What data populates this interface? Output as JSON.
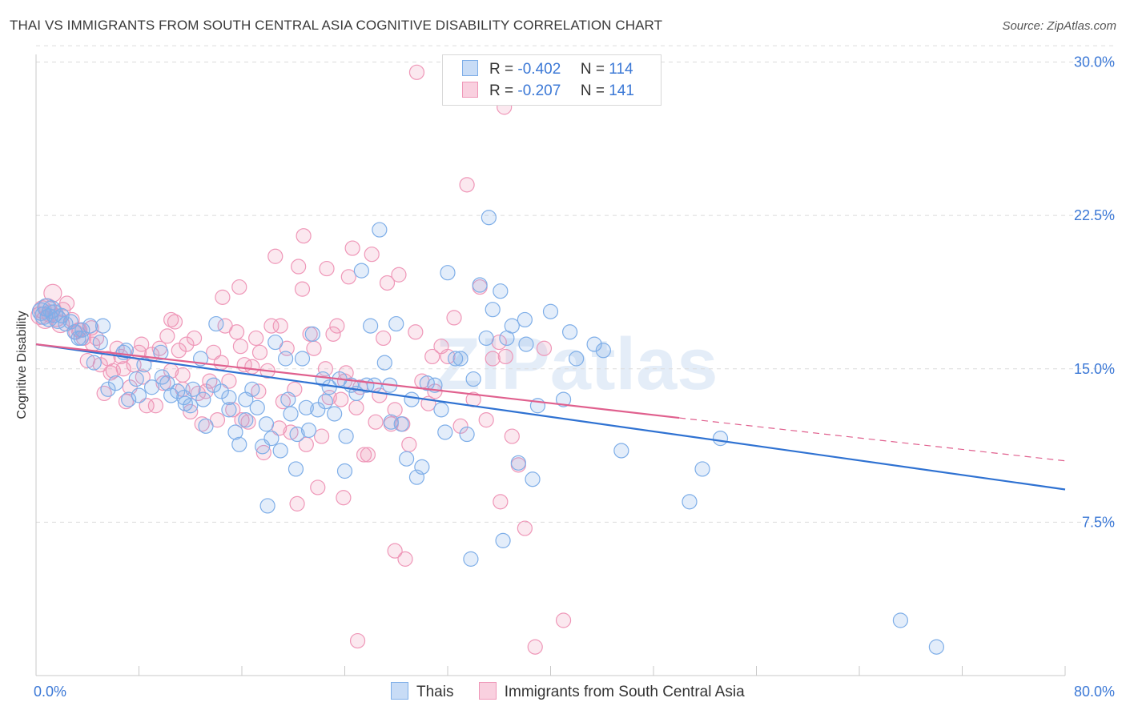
{
  "title": "THAI VS IMMIGRANTS FROM SOUTH CENTRAL ASIA COGNITIVE DISABILITY CORRELATION CHART",
  "source": "Source: ZipAtlas.com",
  "watermark": "ZIPatlas",
  "colors": {
    "blue": "#7eaee8",
    "blue_line": "#2f72d2",
    "pink": "#ef97b8",
    "pink_line": "#e0608e",
    "axis_text": "#3b78d6",
    "grid": "#dcdcdc"
  },
  "legend": {
    "rows": [
      {
        "r_label": "R =",
        "r_value": "-0.402",
        "n_label": "N =",
        "n_value": "114"
      },
      {
        "r_label": "R =",
        "r_value": "-0.207",
        "n_label": "N =",
        "n_value": "141"
      }
    ]
  },
  "bottom_legend": {
    "thais": "Thais",
    "immigrants": "Immigrants from South Central Asia"
  },
  "chart_data": {
    "type": "scatter",
    "title": "THAI VS IMMIGRANTS FROM SOUTH CENTRAL ASIA COGNITIVE DISABILITY CORRELATION CHART",
    "xlabel": "",
    "ylabel": "Cognitive Disability",
    "xlim": [
      0,
      80
    ],
    "ylim": [
      0,
      31
    ],
    "x_tick_labels": [
      "0.0%",
      "80.0%"
    ],
    "y_ticks": [
      7.5,
      15.0,
      22.5,
      30.0
    ],
    "y_tick_labels": [
      "7.5%",
      "15.0%",
      "22.5%",
      "30.0%"
    ],
    "grid": true,
    "series": [
      {
        "name": "Thais",
        "r": -0.402,
        "n": 114,
        "trend": {
          "x": [
            0,
            80
          ],
          "y": [
            16.2,
            9.1
          ]
        },
        "points": [
          [
            0.4,
            17.8
          ],
          [
            0.6,
            17.6
          ],
          [
            0.8,
            18.0
          ],
          [
            1.0,
            17.5
          ],
          [
            1.2,
            17.9
          ],
          [
            1.4,
            17.7
          ],
          [
            1.7,
            17.4
          ],
          [
            2.0,
            17.6
          ],
          [
            2.3,
            17.2
          ],
          [
            2.7,
            17.3
          ],
          [
            3.0,
            16.8
          ],
          [
            3.3,
            16.5
          ],
          [
            3.6,
            16.9
          ],
          [
            4.2,
            17.1
          ],
          [
            4.5,
            15.3
          ],
          [
            5.0,
            16.3
          ],
          [
            5.6,
            14.0
          ],
          [
            6.2,
            14.3
          ],
          [
            6.8,
            15.8
          ],
          [
            7.2,
            13.5
          ],
          [
            7.8,
            14.5
          ],
          [
            8.4,
            15.2
          ],
          [
            9.0,
            14.1
          ],
          [
            9.8,
            14.6
          ],
          [
            10.5,
            13.7
          ],
          [
            11.0,
            13.9
          ],
          [
            11.6,
            13.3
          ],
          [
            12.2,
            14.0
          ],
          [
            12.8,
            15.5
          ],
          [
            13.2,
            12.2
          ],
          [
            13.8,
            14.2
          ],
          [
            14.4,
            13.9
          ],
          [
            15.0,
            13.6
          ],
          [
            15.5,
            11.9
          ],
          [
            15.8,
            11.3
          ],
          [
            16.3,
            12.5
          ],
          [
            16.8,
            14.0
          ],
          [
            17.2,
            13.1
          ],
          [
            17.6,
            11.2
          ],
          [
            17.9,
            12.3
          ],
          [
            18.3,
            11.6
          ],
          [
            18.6,
            16.3
          ],
          [
            19.0,
            11.0
          ],
          [
            19.4,
            15.5
          ],
          [
            19.8,
            12.8
          ],
          [
            20.3,
            11.8
          ],
          [
            20.7,
            15.5
          ],
          [
            21.2,
            12.0
          ],
          [
            21.5,
            16.7
          ],
          [
            21.9,
            13.0
          ],
          [
            22.3,
            14.5
          ],
          [
            22.8,
            14.1
          ],
          [
            23.2,
            12.8
          ],
          [
            23.6,
            14.5
          ],
          [
            24.1,
            11.7
          ],
          [
            24.5,
            14.2
          ],
          [
            24.9,
            13.8
          ],
          [
            25.3,
            19.8
          ],
          [
            25.7,
            14.2
          ],
          [
            26.3,
            14.2
          ],
          [
            26.7,
            21.8
          ],
          [
            27.1,
            15.3
          ],
          [
            27.5,
            14.2
          ],
          [
            28.0,
            17.2
          ],
          [
            28.4,
            12.3
          ],
          [
            28.8,
            10.6
          ],
          [
            29.2,
            13.5
          ],
          [
            29.6,
            9.7
          ],
          [
            30.0,
            10.2
          ],
          [
            30.4,
            14.3
          ],
          [
            31.0,
            14.2
          ],
          [
            31.5,
            13.0
          ],
          [
            32.0,
            19.7
          ],
          [
            32.6,
            15.5
          ],
          [
            33.0,
            15.5
          ],
          [
            33.5,
            11.8
          ],
          [
            34.0,
            14.5
          ],
          [
            34.5,
            19.1
          ],
          [
            35.0,
            16.5
          ],
          [
            35.5,
            17.9
          ],
          [
            36.1,
            18.8
          ],
          [
            36.6,
            16.5
          ],
          [
            37.0,
            17.1
          ],
          [
            37.5,
            10.4
          ],
          [
            38.1,
            16.2
          ],
          [
            38.6,
            9.6
          ],
          [
            39.0,
            13.2
          ],
          [
            40.0,
            17.8
          ],
          [
            41.0,
            13.5
          ],
          [
            41.5,
            16.8
          ],
          [
            42.0,
            15.5
          ],
          [
            43.4,
            16.2
          ],
          [
            44.1,
            15.9
          ],
          [
            45.5,
            11.0
          ],
          [
            26.0,
            17.1
          ],
          [
            10.2,
            14.3
          ],
          [
            14.0,
            17.2
          ],
          [
            16.3,
            13.5
          ],
          [
            18.0,
            8.3
          ],
          [
            20.2,
            10.1
          ],
          [
            24.0,
            10.0
          ],
          [
            27.6,
            12.4
          ],
          [
            31.8,
            11.9
          ],
          [
            35.2,
            22.4
          ],
          [
            36.3,
            6.6
          ],
          [
            33.8,
            5.7
          ],
          [
            50.8,
            8.5
          ],
          [
            51.8,
            10.1
          ],
          [
            53.2,
            11.6
          ],
          [
            67.2,
            2.7
          ],
          [
            70.0,
            1.4
          ],
          [
            5.2,
            17.1
          ],
          [
            7.0,
            15.9
          ],
          [
            9.7,
            15.8
          ],
          [
            3.5,
            16.5
          ],
          [
            12.0,
            13.2
          ],
          [
            15.0,
            13.0
          ],
          [
            19.6,
            13.5
          ],
          [
            21.0,
            13.1
          ],
          [
            22.5,
            13.4
          ],
          [
            8.0,
            13.7
          ],
          [
            11.5,
            13.6
          ],
          [
            13.0,
            13.5
          ],
          [
            38.0,
            17.4
          ]
        ]
      },
      {
        "name": "Immigrants from South Central Asia",
        "r": -0.207,
        "n": 141,
        "trend": {
          "x": [
            0,
            50
          ],
          "y": [
            16.2,
            12.6
          ],
          "dashed_x": [
            50,
            80
          ],
          "dashed_y": [
            12.6,
            10.5
          ]
        },
        "points": [
          [
            0.3,
            17.6
          ],
          [
            0.5,
            17.9
          ],
          [
            0.7,
            17.4
          ],
          [
            0.9,
            18.0
          ],
          [
            1.1,
            17.7
          ],
          [
            1.3,
            18.7
          ],
          [
            1.6,
            17.5
          ],
          [
            1.9,
            17.2
          ],
          [
            2.1,
            17.9
          ],
          [
            2.4,
            18.2
          ],
          [
            2.8,
            17.4
          ],
          [
            3.1,
            16.8
          ],
          [
            3.4,
            16.9
          ],
          [
            3.7,
            16.5
          ],
          [
            4.0,
            15.4
          ],
          [
            4.3,
            17.0
          ],
          [
            4.7,
            16.5
          ],
          [
            5.0,
            15.2
          ],
          [
            5.3,
            13.8
          ],
          [
            5.6,
            15.5
          ],
          [
            6.0,
            14.9
          ],
          [
            6.3,
            16.0
          ],
          [
            6.6,
            15.6
          ],
          [
            7.0,
            13.4
          ],
          [
            7.3,
            14.1
          ],
          [
            7.6,
            15.2
          ],
          [
            8.0,
            15.8
          ],
          [
            8.3,
            14.6
          ],
          [
            8.6,
            13.2
          ],
          [
            9.0,
            15.7
          ],
          [
            9.3,
            13.2
          ],
          [
            9.6,
            16.0
          ],
          [
            9.9,
            14.3
          ],
          [
            10.2,
            16.6
          ],
          [
            10.5,
            14.9
          ],
          [
            10.8,
            17.3
          ],
          [
            11.1,
            15.9
          ],
          [
            11.4,
            14.7
          ],
          [
            11.7,
            16.2
          ],
          [
            12.0,
            12.9
          ],
          [
            12.3,
            16.5
          ],
          [
            12.6,
            13.8
          ],
          [
            12.9,
            12.3
          ],
          [
            13.2,
            13.9
          ],
          [
            13.5,
            14.4
          ],
          [
            13.8,
            15.8
          ],
          [
            14.1,
            12.5
          ],
          [
            14.4,
            15.3
          ],
          [
            14.7,
            17.1
          ],
          [
            15.0,
            14.4
          ],
          [
            15.3,
            13.0
          ],
          [
            15.6,
            16.8
          ],
          [
            15.9,
            16.1
          ],
          [
            16.2,
            15.2
          ],
          [
            16.5,
            12.4
          ],
          [
            16.8,
            15.1
          ],
          [
            17.1,
            16.5
          ],
          [
            17.4,
            15.8
          ],
          [
            17.7,
            10.9
          ],
          [
            18.0,
            14.9
          ],
          [
            18.3,
            17.1
          ],
          [
            18.6,
            20.5
          ],
          [
            18.9,
            12.1
          ],
          [
            19.2,
            13.4
          ],
          [
            19.5,
            16.0
          ],
          [
            19.8,
            11.9
          ],
          [
            20.1,
            14.0
          ],
          [
            20.4,
            20.0
          ],
          [
            20.7,
            18.9
          ],
          [
            21.0,
            11.3
          ],
          [
            21.3,
            16.7
          ],
          [
            21.6,
            16.0
          ],
          [
            21.9,
            9.2
          ],
          [
            22.2,
            11.7
          ],
          [
            22.5,
            15.0
          ],
          [
            22.8,
            13.6
          ],
          [
            23.1,
            16.7
          ],
          [
            23.4,
            17.1
          ],
          [
            23.7,
            13.5
          ],
          [
            24.0,
            14.4
          ],
          [
            24.3,
            19.5
          ],
          [
            24.6,
            20.9
          ],
          [
            24.9,
            13.1
          ],
          [
            25.2,
            14.1
          ],
          [
            25.5,
            10.8
          ],
          [
            25.8,
            10.8
          ],
          [
            26.1,
            20.6
          ],
          [
            26.4,
            12.4
          ],
          [
            26.7,
            13.7
          ],
          [
            27.0,
            16.5
          ],
          [
            27.3,
            19.2
          ],
          [
            27.6,
            12.3
          ],
          [
            27.9,
            13.0
          ],
          [
            28.2,
            19.6
          ],
          [
            28.5,
            12.3
          ],
          [
            29.0,
            11.3
          ],
          [
            29.5,
            16.8
          ],
          [
            30.0,
            14.4
          ],
          [
            30.5,
            13.3
          ],
          [
            31.0,
            13.9
          ],
          [
            31.5,
            16.1
          ],
          [
            32.0,
            15.6
          ],
          [
            32.5,
            17.5
          ],
          [
            33.0,
            12.2
          ],
          [
            33.5,
            24.0
          ],
          [
            34.0,
            13.5
          ],
          [
            34.5,
            19.0
          ],
          [
            35.0,
            12.5
          ],
          [
            35.5,
            15.5
          ],
          [
            36.0,
            16.3
          ],
          [
            36.5,
            15.6
          ],
          [
            37.0,
            11.7
          ],
          [
            37.5,
            10.3
          ],
          [
            38.0,
            7.2
          ],
          [
            29.6,
            29.5
          ],
          [
            36.4,
            27.8
          ],
          [
            20.8,
            21.5
          ],
          [
            14.5,
            18.5
          ],
          [
            10.5,
            17.4
          ],
          [
            8.2,
            16.2
          ],
          [
            6.8,
            15.0
          ],
          [
            5.8,
            14.8
          ],
          [
            4.4,
            16.2
          ],
          [
            3.3,
            16.9
          ],
          [
            27.9,
            6.1
          ],
          [
            20.3,
            8.4
          ],
          [
            23.9,
            8.7
          ],
          [
            25.0,
            1.7
          ],
          [
            36.1,
            8.5
          ],
          [
            38.8,
            1.4
          ],
          [
            41.0,
            2.7
          ],
          [
            28.7,
            5.7
          ],
          [
            39.5,
            16.0
          ],
          [
            15.8,
            19.0
          ],
          [
            22.6,
            19.9
          ],
          [
            11.4,
            14.0
          ],
          [
            16.0,
            12.5
          ],
          [
            19.0,
            17.1
          ],
          [
            24.1,
            14.8
          ],
          [
            30.8,
            15.6
          ],
          [
            17.3,
            13.9
          ]
        ]
      }
    ]
  }
}
